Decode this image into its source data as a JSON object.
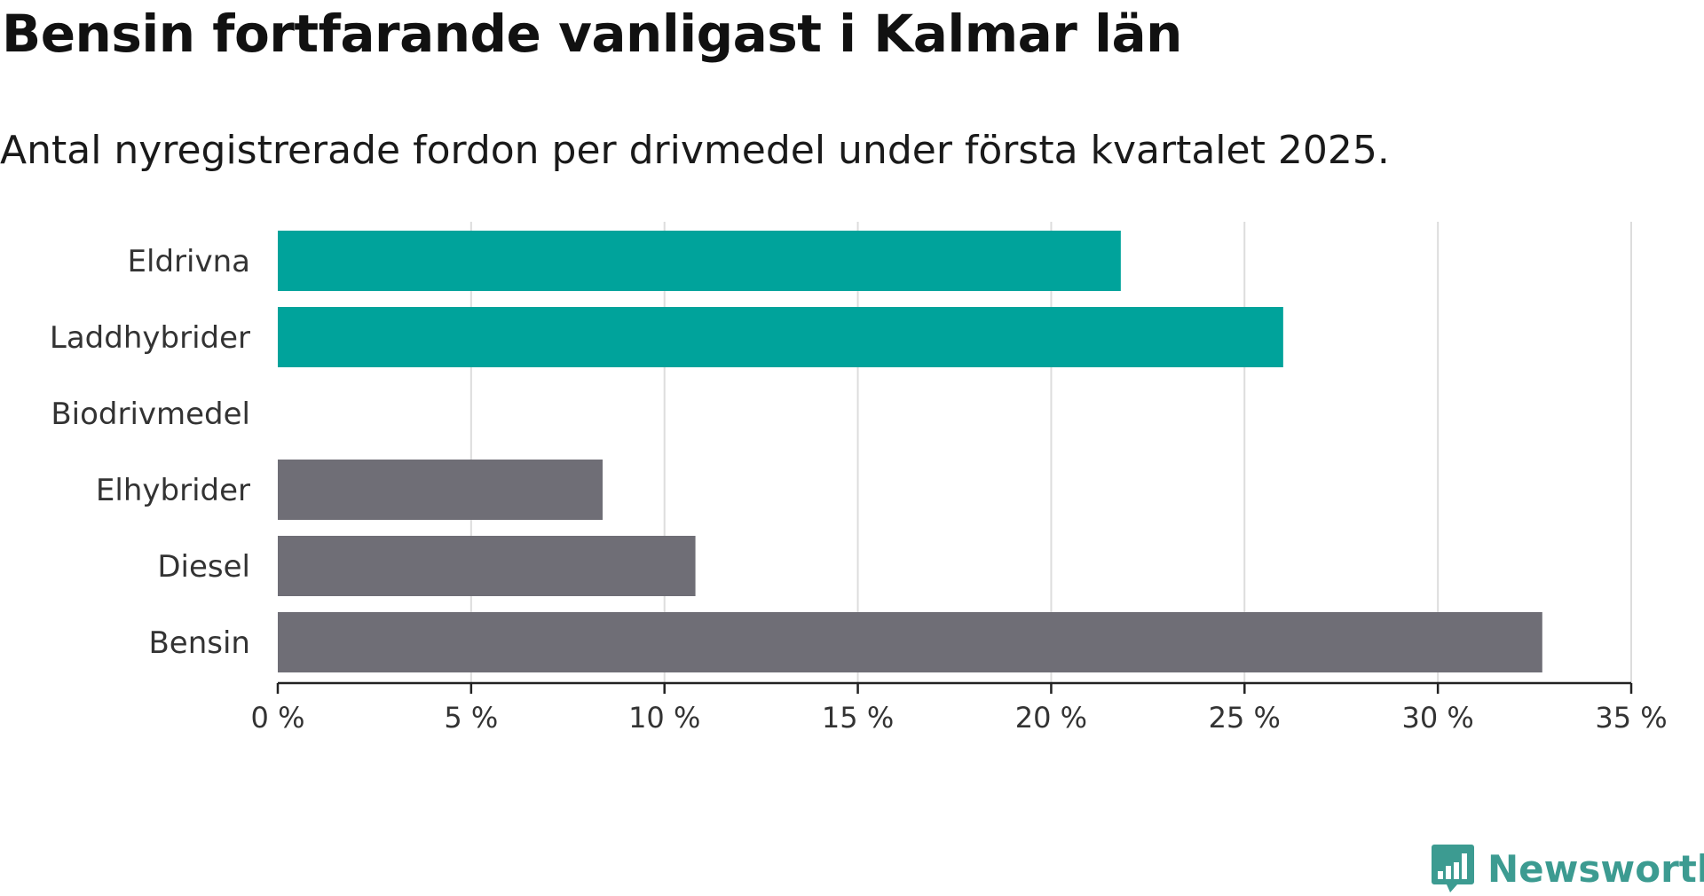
{
  "title": "Bensin fortfarande vanligast i Kalmar län",
  "subtitle": "Antal nyregistrerade fordon per drivmedel under första kvartalet 2025.",
  "brand": {
    "name": "Newsworthy",
    "icon": "newsworthy-logo-icon"
  },
  "colors": {
    "highlight": "#00a39b",
    "other": "#6f6e76",
    "grid": "#dddddd",
    "axis": "#222222"
  },
  "chart_data": {
    "type": "bar",
    "orientation": "horizontal",
    "categories": [
      "Eldrivna",
      "Laddhybrider",
      "Biodrivmedel",
      "Elhybrider",
      "Diesel",
      "Bensin"
    ],
    "values": [
      21.8,
      26.0,
      0,
      8.4,
      10.8,
      32.7
    ],
    "highlighted": [
      true,
      true,
      false,
      false,
      false,
      false
    ],
    "xlim": [
      0,
      35
    ],
    "xticks": [
      0,
      5,
      10,
      15,
      20,
      25,
      30,
      35
    ],
    "tick_labels": [
      "0 %",
      "5 %",
      "10 %",
      "15 %",
      "20 %",
      "25 %",
      "30 %",
      "35 %"
    ],
    "grid": true
  }
}
